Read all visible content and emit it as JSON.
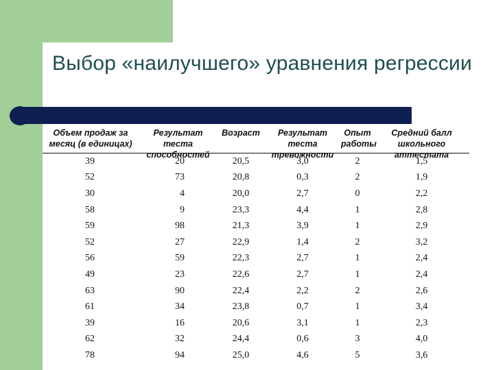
{
  "slide": {
    "title": "Выбор «наилучшего» уравнения регрессии"
  },
  "table": {
    "headers": [
      [
        "Объем продаж за",
        "месяц (в единицах)"
      ],
      [
        "Результат теста",
        "способностей"
      ],
      [
        "Возраст",
        ""
      ],
      [
        "Результат теста",
        "тревожности"
      ],
      [
        "Опыт",
        "работы"
      ],
      [
        "Средний балл",
        "школьного аттестата"
      ]
    ],
    "rows": [
      [
        "39",
        "20",
        "20,5",
        "3,0",
        "2",
        "1,5"
      ],
      [
        "52",
        "73",
        "20,8",
        "0,3",
        "2",
        "1,9"
      ],
      [
        "30",
        "4",
        "20,0",
        "2,7",
        "0",
        "2,2"
      ],
      [
        "58",
        "9",
        "23,3",
        "4,4",
        "1",
        "2,8"
      ],
      [
        "59",
        "98",
        "21,3",
        "3,9",
        "1",
        "2,9"
      ],
      [
        "52",
        "27",
        "22,9",
        "1,4",
        "2",
        "3,2"
      ],
      [
        "56",
        "59",
        "22,3",
        "2,7",
        "1",
        "2,4"
      ],
      [
        "49",
        "23",
        "22,6",
        "2,7",
        "1",
        "2,4"
      ],
      [
        "63",
        "90",
        "22,4",
        "2,2",
        "2",
        "2,6"
      ],
      [
        "61",
        "34",
        "23,8",
        "0,7",
        "1",
        "3,4"
      ],
      [
        "39",
        "16",
        "20,6",
        "3,1",
        "1",
        "2,3"
      ],
      [
        "62",
        "32",
        "24,4",
        "0,6",
        "3",
        "4,0"
      ],
      [
        "78",
        "94",
        "25,0",
        "4,6",
        "5",
        "3,6"
      ]
    ]
  }
}
